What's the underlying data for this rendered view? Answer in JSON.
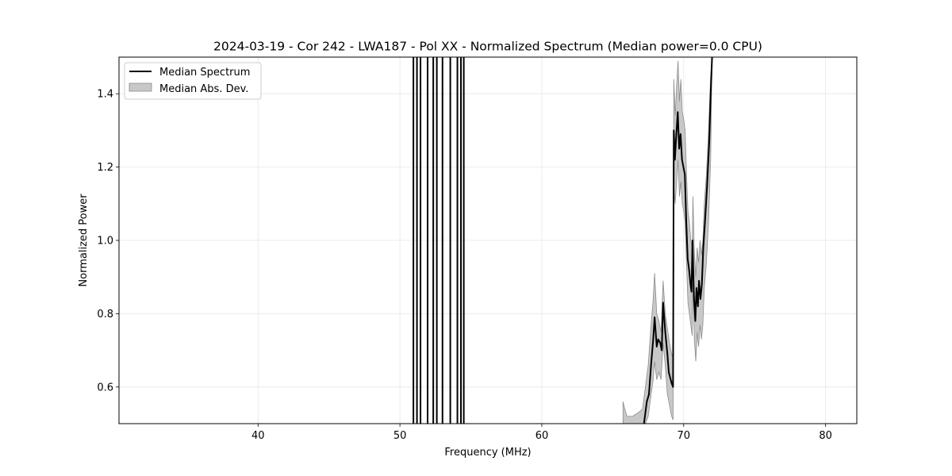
{
  "chart_data": {
    "type": "line",
    "title": "2024-03-19 - Cor 242 - LWA187 - Pol XX - Normalized Spectrum (Median power=0.0 CPU)",
    "xlabel": "Frequency (MHz)",
    "ylabel": "Normalized Power",
    "xlim": [
      30.2,
      82.2
    ],
    "ylim": [
      0.5,
      1.5
    ],
    "xticks": [
      40,
      50,
      60,
      70,
      80
    ],
    "yticks": [
      0.6,
      0.8,
      1.0,
      1.2,
      1.4
    ],
    "xtick_labels": [
      "40",
      "50",
      "60",
      "70",
      "80"
    ],
    "ytick_labels": [
      "0.6",
      "0.8",
      "1.0",
      "1.2",
      "1.4"
    ],
    "grid": true,
    "legend_position": "top-left",
    "series": [
      {
        "name": "Median Spectrum",
        "kind": "line",
        "color": "#000000",
        "segments": [
          [
            [
              50.95,
              0.5
            ],
            [
              50.95,
              1.5
            ]
          ],
          [
            [
              51.2,
              0.5
            ],
            [
              51.2,
              1.5
            ]
          ],
          [
            [
              51.45,
              0.5
            ],
            [
              51.45,
              1.5
            ]
          ],
          [
            [
              51.95,
              0.5
            ],
            [
              51.95,
              1.5
            ]
          ],
          [
            [
              52.35,
              0.5
            ],
            [
              52.35,
              1.5
            ]
          ],
          [
            [
              52.6,
              0.5
            ],
            [
              52.6,
              1.5
            ]
          ],
          [
            [
              53.0,
              0.5
            ],
            [
              53.0,
              1.5
            ]
          ],
          [
            [
              53.55,
              0.5
            ],
            [
              53.55,
              1.5
            ]
          ],
          [
            [
              54.05,
              0.5
            ],
            [
              54.05,
              1.5
            ]
          ],
          [
            [
              54.3,
              0.5
            ],
            [
              54.3,
              1.5
            ]
          ],
          [
            [
              54.5,
              0.5
            ],
            [
              54.5,
              1.5
            ]
          ],
          [
            [
              67.2,
              0.5
            ],
            [
              67.4,
              0.56
            ],
            [
              67.55,
              0.58
            ],
            [
              67.7,
              0.66
            ],
            [
              67.85,
              0.73
            ],
            [
              67.95,
              0.79
            ],
            [
              68.1,
              0.71
            ],
            [
              68.2,
              0.73
            ],
            [
              68.35,
              0.72
            ],
            [
              68.45,
              0.7
            ],
            [
              68.55,
              0.83
            ],
            [
              68.7,
              0.75
            ],
            [
              68.85,
              0.69
            ],
            [
              68.95,
              0.64
            ],
            [
              69.15,
              0.61
            ],
            [
              69.25,
              0.6
            ],
            [
              69.3,
              1.3
            ],
            [
              69.38,
              1.22
            ],
            [
              69.48,
              1.29
            ],
            [
              69.58,
              1.35
            ],
            [
              69.68,
              1.25
            ],
            [
              69.78,
              1.29
            ],
            [
              69.88,
              1.22
            ],
            [
              69.98,
              1.2
            ],
            [
              70.08,
              1.18
            ],
            [
              70.18,
              1.05
            ],
            [
              70.28,
              0.95
            ],
            [
              70.38,
              0.92
            ],
            [
              70.48,
              0.88
            ],
            [
              70.55,
              0.86
            ],
            [
              70.62,
              1.0
            ],
            [
              70.72,
              0.85
            ],
            [
              70.82,
              0.78
            ],
            [
              70.9,
              0.87
            ],
            [
              71.0,
              0.82
            ],
            [
              71.08,
              0.89
            ],
            [
              71.18,
              0.84
            ],
            [
              71.28,
              0.88
            ],
            [
              71.38,
              0.98
            ],
            [
              71.5,
              1.05
            ],
            [
              71.65,
              1.15
            ],
            [
              71.8,
              1.27
            ],
            [
              71.9,
              1.4
            ],
            [
              72.0,
              1.5
            ]
          ]
        ]
      },
      {
        "name": "Median Abs. Dev.",
        "kind": "band",
        "color": "#c8c8c8",
        "edge_color": "#8c8c8c",
        "upper": [
          [
            65.72,
            0.56
          ],
          [
            65.85,
            0.54
          ],
          [
            66.0,
            0.52
          ],
          [
            66.4,
            0.52
          ],
          [
            66.8,
            0.53
          ],
          [
            67.1,
            0.54
          ],
          [
            67.3,
            0.6
          ],
          [
            67.5,
            0.66
          ],
          [
            67.7,
            0.77
          ],
          [
            67.85,
            0.84
          ],
          [
            67.95,
            0.91
          ],
          [
            68.1,
            0.8
          ],
          [
            68.25,
            0.78
          ],
          [
            68.4,
            0.75
          ],
          [
            68.55,
            0.89
          ],
          [
            68.7,
            0.8
          ],
          [
            68.85,
            0.76
          ],
          [
            69.0,
            0.72
          ],
          [
            69.15,
            0.69
          ],
          [
            69.25,
            0.68
          ],
          [
            69.3,
            1.44
          ],
          [
            69.4,
            1.34
          ],
          [
            69.5,
            1.42
          ],
          [
            69.6,
            1.49
          ],
          [
            69.7,
            1.38
          ],
          [
            69.8,
            1.44
          ],
          [
            69.9,
            1.35
          ],
          [
            70.0,
            1.33
          ],
          [
            70.1,
            1.3
          ],
          [
            70.2,
            1.18
          ],
          [
            70.3,
            1.08
          ],
          [
            70.4,
            1.05
          ],
          [
            70.5,
            1.0
          ],
          [
            70.6,
            0.98
          ],
          [
            70.65,
            1.12
          ],
          [
            70.75,
            0.97
          ],
          [
            70.85,
            0.9
          ],
          [
            70.95,
            0.98
          ],
          [
            71.05,
            0.94
          ],
          [
            71.15,
            1.0
          ],
          [
            71.25,
            0.96
          ],
          [
            71.35,
            1.0
          ],
          [
            71.45,
            1.1
          ],
          [
            71.6,
            1.18
          ],
          [
            71.75,
            1.3
          ],
          [
            71.9,
            1.45
          ],
          [
            72.0,
            1.5
          ]
        ],
        "lower": [
          [
            65.72,
            0.5
          ],
          [
            66.0,
            0.5
          ],
          [
            66.4,
            0.5
          ],
          [
            66.8,
            0.5
          ],
          [
            67.1,
            0.5
          ],
          [
            67.3,
            0.5
          ],
          [
            67.5,
            0.52
          ],
          [
            67.7,
            0.58
          ],
          [
            67.85,
            0.62
          ],
          [
            67.95,
            0.67
          ],
          [
            68.1,
            0.62
          ],
          [
            68.25,
            0.64
          ],
          [
            68.4,
            0.62
          ],
          [
            68.55,
            0.72
          ],
          [
            68.7,
            0.66
          ],
          [
            68.85,
            0.58
          ],
          [
            69.0,
            0.55
          ],
          [
            69.15,
            0.52
          ],
          [
            69.25,
            0.51
          ],
          [
            69.3,
            1.15
          ],
          [
            69.4,
            1.1
          ],
          [
            69.5,
            1.16
          ],
          [
            69.6,
            1.22
          ],
          [
            69.7,
            1.12
          ],
          [
            69.8,
            1.16
          ],
          [
            69.9,
            1.1
          ],
          [
            70.0,
            1.08
          ],
          [
            70.1,
            1.05
          ],
          [
            70.2,
            0.93
          ],
          [
            70.3,
            0.83
          ],
          [
            70.4,
            0.8
          ],
          [
            70.5,
            0.77
          ],
          [
            70.6,
            0.74
          ],
          [
            70.65,
            0.88
          ],
          [
            70.75,
            0.73
          ],
          [
            70.85,
            0.67
          ],
          [
            70.95,
            0.75
          ],
          [
            71.05,
            0.71
          ],
          [
            71.15,
            0.77
          ],
          [
            71.25,
            0.73
          ],
          [
            71.35,
            0.77
          ],
          [
            71.45,
            0.87
          ],
          [
            71.6,
            0.94
          ],
          [
            71.75,
            1.05
          ],
          [
            71.9,
            1.22
          ],
          [
            72.0,
            1.5
          ]
        ]
      }
    ]
  }
}
